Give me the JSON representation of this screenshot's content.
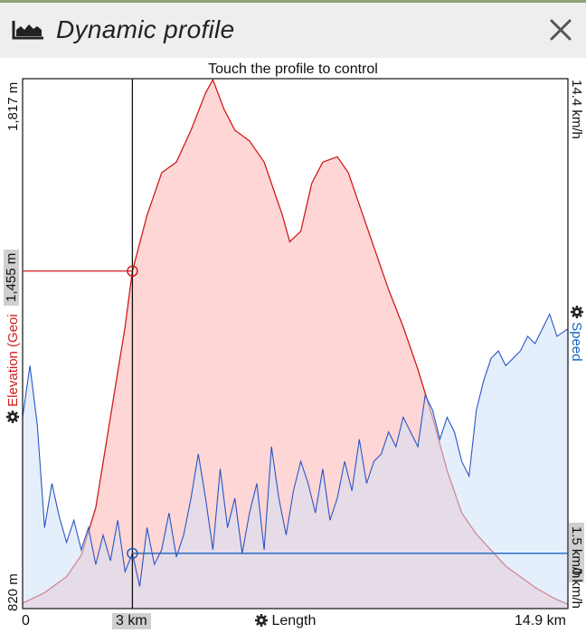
{
  "header": {
    "title": "Dynamic profile",
    "icon": "profile-chart-icon",
    "close_icon": "close-icon"
  },
  "hint": "Touch the profile to control",
  "left_axis": {
    "top_label": "1,817 m",
    "bottom_label": "820 m",
    "cursor_value": "1,455 m",
    "name": "Elevation (Geoi",
    "color": "#d01c1c"
  },
  "right_axis": {
    "top_label": "14.4 km/h",
    "cursor_value": "1.5 km/h",
    "bottom_label": "0 km/h",
    "name": "Speed",
    "color": "#1565c0"
  },
  "bottom_axis": {
    "start_label": "0",
    "cursor_label": "3 km",
    "name": "Length",
    "end_label": "14.9 km"
  },
  "chart_data": {
    "type": "area",
    "xlabel": "Length",
    "cursor": {
      "distance_km": 3.0,
      "elevation_m": 1455,
      "speed_kmh": 1.5
    },
    "series": [
      {
        "name": "Elevation (Geoi",
        "unit": "m",
        "color": "#d01c1c",
        "fill": "#ffd6d6",
        "ylim": [
          820,
          1817
        ],
        "x": [
          0,
          0.6,
          1.2,
          1.6,
          2.0,
          2.4,
          2.8,
          3.0,
          3.4,
          3.8,
          4.2,
          4.6,
          5.0,
          5.2,
          5.5,
          5.8,
          6.2,
          6.6,
          6.9,
          7.1,
          7.3,
          7.6,
          7.9,
          8.2,
          8.6,
          8.9,
          9.2,
          9.6,
          10.0,
          10.4,
          10.8,
          11.2,
          11.6,
          12.0,
          12.4,
          12.8,
          13.2,
          13.6,
          14.0,
          14.5,
          14.9
        ],
        "values": [
          830,
          850,
          880,
          920,
          1010,
          1180,
          1350,
          1455,
          1560,
          1640,
          1660,
          1720,
          1790,
          1815,
          1760,
          1720,
          1700,
          1660,
          1600,
          1560,
          1510,
          1530,
          1620,
          1660,
          1670,
          1640,
          1580,
          1500,
          1420,
          1350,
          1270,
          1180,
          1080,
          1000,
          960,
          930,
          900,
          880,
          860,
          840,
          828
        ]
      },
      {
        "name": "Speed",
        "unit": "km/h",
        "color": "#2a55c5",
        "fill": "#cfe1f7",
        "ylim": [
          0,
          14.4
        ],
        "x": [
          0,
          0.2,
          0.4,
          0.6,
          0.8,
          1.0,
          1.2,
          1.4,
          1.6,
          1.8,
          2.0,
          2.2,
          2.4,
          2.6,
          2.8,
          3.0,
          3.2,
          3.4,
          3.6,
          3.8,
          4.0,
          4.2,
          4.4,
          4.6,
          4.8,
          5.0,
          5.2,
          5.4,
          5.6,
          5.8,
          6.0,
          6.2,
          6.4,
          6.6,
          6.8,
          7.0,
          7.2,
          7.4,
          7.6,
          7.8,
          8.0,
          8.2,
          8.4,
          8.6,
          8.8,
          9.0,
          9.2,
          9.4,
          9.6,
          9.8,
          10.0,
          10.2,
          10.4,
          10.6,
          10.8,
          11.0,
          11.2,
          11.4,
          11.6,
          11.8,
          12.0,
          12.2,
          12.4,
          12.6,
          12.8,
          13.0,
          13.2,
          13.4,
          13.6,
          13.8,
          14.0,
          14.2,
          14.4,
          14.6,
          14.9
        ],
        "values": [
          5.2,
          6.6,
          5.0,
          2.2,
          3.4,
          2.5,
          1.8,
          2.4,
          1.6,
          2.2,
          1.2,
          2.0,
          1.3,
          2.4,
          1.0,
          1.5,
          0.6,
          2.2,
          1.2,
          1.6,
          2.6,
          1.4,
          2.0,
          3.0,
          4.2,
          3.0,
          1.6,
          3.8,
          2.2,
          3.0,
          1.5,
          2.6,
          3.4,
          1.6,
          4.4,
          3.0,
          2.0,
          3.2,
          4.0,
          3.4,
          2.6,
          3.8,
          2.4,
          3.0,
          4.0,
          3.2,
          4.6,
          3.4,
          4.0,
          4.2,
          4.8,
          4.4,
          5.2,
          4.8,
          4.4,
          5.8,
          5.4,
          4.6,
          5.2,
          4.8,
          4.0,
          3.6,
          5.4,
          6.2,
          6.8,
          7.0,
          6.6,
          6.8,
          7.0,
          7.4,
          7.2,
          7.6,
          8.0,
          7.4,
          7.6
        ]
      }
    ]
  }
}
